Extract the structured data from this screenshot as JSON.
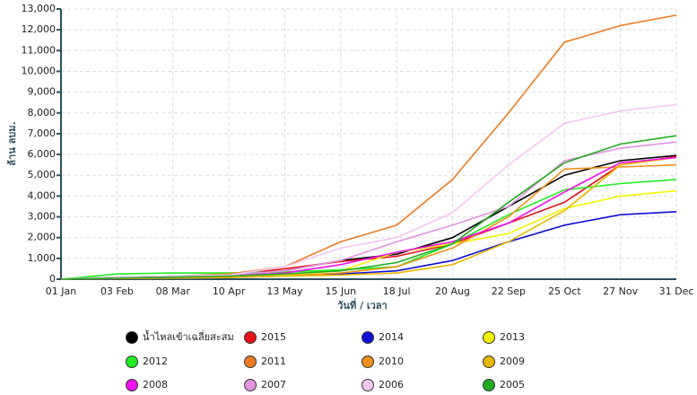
{
  "chart_data": {
    "type": "line",
    "x_label": "วันที่ / เวลา",
    "y_label": "ล้าน ลบม.",
    "categories": [
      "01 Jan",
      "03 Feb",
      "08 Mar",
      "10 Apr",
      "13 May",
      "15 Jun",
      "18 Jul",
      "20 Aug",
      "22 Sep",
      "25 Oct",
      "27 Nov",
      "31 Dec"
    ],
    "ylim": [
      0,
      13000
    ],
    "yticks": [
      0,
      {
        "value": 1000,
        "label": "1,000"
      },
      {
        "value": 2000,
        "label": "2,000"
      },
      {
        "value": 3000,
        "label": "3,000"
      },
      {
        "value": 4000,
        "label": "4,000"
      },
      {
        "value": 5000,
        "label": "5,000"
      },
      {
        "value": 6000,
        "label": "6,000"
      },
      {
        "value": 7000,
        "label": "7,000"
      },
      {
        "value": 8000,
        "label": "8,000"
      },
      {
        "value": 9000,
        "label": "9,000"
      },
      {
        "value": 10000,
        "label": "10,000"
      },
      {
        "value": 11000,
        "label": "11,000"
      },
      {
        "value": 12000,
        "label": "12,000"
      },
      {
        "value": 13000,
        "label": "13,000"
      }
    ],
    "grid": true,
    "legend": "bottom",
    "series": [
      {
        "name": "น้ำไหลเข้าเฉลี่ยสะสม",
        "color": "#000000",
        "values": [
          0,
          100,
          150,
          200,
          400,
          900,
          1200,
          2000,
          3500,
          5000,
          5700,
          5950
        ]
      },
      {
        "name": "2015",
        "color": "#e8121b",
        "values": [
          0,
          80,
          150,
          200,
          500,
          850,
          1100,
          1700,
          2700,
          3700,
          5500,
          5900
        ]
      },
      {
        "name": "2014",
        "color": "#1010d8",
        "values": [
          0,
          30,
          50,
          80,
          150,
          250,
          400,
          900,
          1800,
          2600,
          3100,
          3250
        ]
      },
      {
        "name": "2013",
        "color": "#f4f400",
        "values": [
          0,
          50,
          80,
          100,
          200,
          400,
          1300,
          1700,
          2200,
          3400,
          4000,
          4250
        ]
      },
      {
        "name": "2012",
        "color": "#22ee22",
        "values": [
          0,
          250,
          300,
          300,
          350,
          450,
          600,
          1700,
          3100,
          4300,
          4600,
          4800
        ]
      },
      {
        "name": "2011",
        "color": "#f07a22",
        "values": [
          0,
          100,
          150,
          250,
          600,
          1800,
          2600,
          4800,
          8000,
          11400,
          12200,
          12700
        ]
      },
      {
        "name": "2010",
        "color": "#f0901a",
        "values": [
          0,
          50,
          80,
          100,
          150,
          300,
          600,
          1500,
          3000,
          5300,
          5400,
          5500
        ]
      },
      {
        "name": "2009",
        "color": "#e8b800",
        "values": [
          0,
          30,
          50,
          80,
          150,
          200,
          300,
          700,
          1800,
          3300,
          5500,
          5850
        ]
      },
      {
        "name": "2008",
        "color": "#ee10ee",
        "values": [
          0,
          50,
          100,
          150,
          300,
          700,
          1300,
          1800,
          2700,
          4200,
          5600,
          5850
        ]
      },
      {
        "name": "2007",
        "color": "#e294e2",
        "values": [
          0,
          100,
          150,
          200,
          400,
          900,
          1800,
          2600,
          3500,
          5700,
          6300,
          6600
        ]
      },
      {
        "name": "2006",
        "color": "#f6c6f2",
        "values": [
          0,
          100,
          150,
          200,
          600,
          1500,
          2000,
          3200,
          5500,
          7500,
          8100,
          8400
        ]
      },
      {
        "name": "2005",
        "color": "#22aa22",
        "values": [
          0,
          50,
          100,
          150,
          250,
          400,
          800,
          1700,
          3700,
          5600,
          6500,
          6900
        ]
      }
    ]
  }
}
